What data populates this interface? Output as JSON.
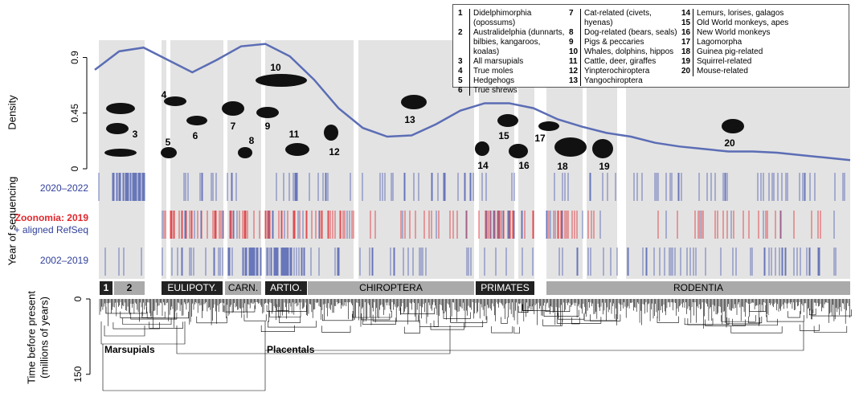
{
  "chart_data": [
    {
      "type": "line",
      "ylabel": "Density",
      "color": "#5b6db5",
      "values": [
        0.8,
        0.95,
        0.98,
        0.88,
        0.78,
        0.88,
        0.99,
        1.01,
        0.91,
        0.72,
        0.49,
        0.33,
        0.26,
        0.27,
        0.36,
        0.47,
        0.53,
        0.53,
        0.49,
        0.4,
        0.34,
        0.29,
        0.26,
        0.21,
        0.18,
        0.16,
        0.14,
        0.14,
        0.13,
        0.11,
        0.09,
        0.07
      ],
      "ylim": [
        0,
        1.04
      ],
      "yticks": [
        0,
        0.45,
        0.9
      ]
    },
    {
      "type": "tree",
      "ylabel": [
        "Time before present",
        "(millions of years)"
      ],
      "ylim": [
        0,
        160
      ],
      "yticks": [
        0,
        150
      ],
      "labels": [
        "Marsupials",
        "Placentals"
      ]
    }
  ],
  "rug": {
    "ylabel": "Year of sequencing",
    "rows": [
      "2020–2022",
      "Zoonomia: 2019",
      "+ aligned RefSeq",
      "2002–2019"
    ]
  },
  "clades": [
    "1",
    "2",
    "EULIPOTY.",
    "CARN.",
    "ARTIO.",
    "CHIROPTERA",
    "PRIMATES",
    "RODENTIA"
  ],
  "silhouettes": [
    "3",
    "4",
    "5",
    "6",
    "7",
    "8",
    "9",
    "10",
    "11",
    "12",
    "13",
    "14",
    "15",
    "16",
    "17",
    "18",
    "19",
    "20"
  ],
  "legend": [
    {
      "number": "1",
      "name": "Didelphimorphia (opossums)"
    },
    {
      "number": "2",
      "name": "Australidelphia (dunnarts, bilbies, kangaroos, koalas)"
    },
    {
      "number": "3",
      "name": "All marsupials"
    },
    {
      "number": "4",
      "name": "True moles"
    },
    {
      "number": "5",
      "name": "Hedgehogs"
    },
    {
      "number": "6",
      "name": "True shrews"
    },
    {
      "number": "7",
      "name": "Cat-related (civets, hyenas)"
    },
    {
      "number": "8",
      "name": "Dog-related (bears, seals)"
    },
    {
      "number": "9",
      "name": "Pigs & peccaries"
    },
    {
      "number": "10",
      "name": "Whales, dolphins, hippos"
    },
    {
      "number": "11",
      "name": "Cattle, deer, giraffes"
    },
    {
      "number": "12",
      "name": "Yinpterochiroptera"
    },
    {
      "number": "13",
      "name": "Yangochiroptera"
    },
    {
      "number": "14",
      "name": "Lemurs, lorises, galagos"
    },
    {
      "number": "15",
      "name": "Old World monkeys, apes"
    },
    {
      "number": "16",
      "name": "New World monkeys"
    },
    {
      "number": "17",
      "name": "Lagomorpha"
    },
    {
      "number": "18",
      "name": "Guinea pig-related"
    },
    {
      "number": "19",
      "name": "Squirrel-related"
    },
    {
      "number": "20",
      "name": "Mouse-related"
    }
  ]
}
